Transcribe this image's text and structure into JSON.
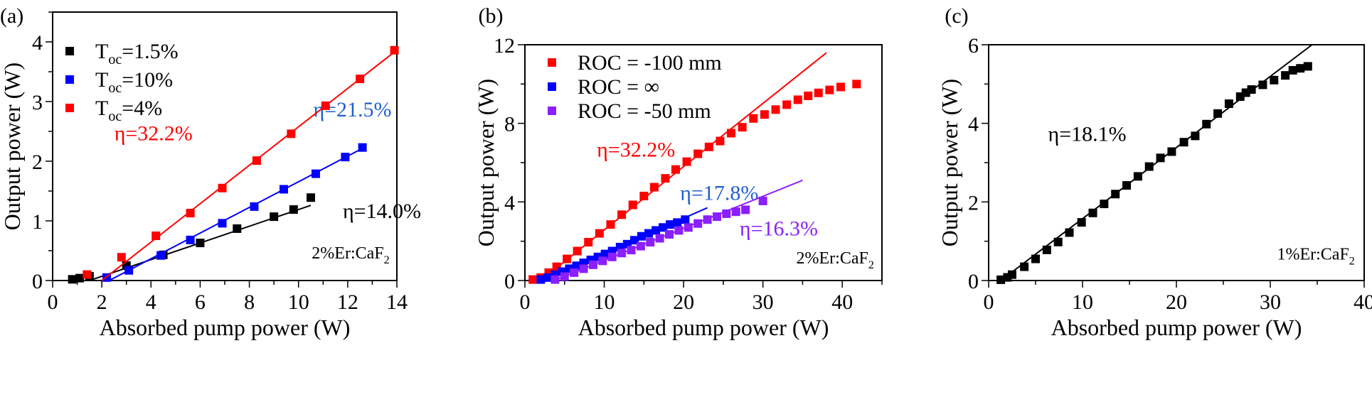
{
  "chart_data": [
    {
      "panel_label": "(a)",
      "type": "scatter",
      "xlabel": "Absorbed pump power (W)",
      "ylabel": "Output power (W)",
      "xlim": [
        0,
        14
      ],
      "ylim": [
        0,
        4.5
      ],
      "xticks": [
        0,
        2,
        4,
        6,
        8,
        10,
        12,
        14
      ],
      "yticks": [
        0,
        1,
        2,
        3,
        4
      ],
      "legend_placement": "top-left",
      "sample_label": "2%Er:CaF",
      "sample_label_sub": "2",
      "series": [
        {
          "name": "T",
          "name_sub": "oc",
          "name_suffix": "=1.5%",
          "color": "#000000",
          "x": [
            0.8,
            1.1,
            1.5,
            3.0,
            4.5,
            6.0,
            7.5,
            9.0,
            9.8,
            10.5
          ],
          "y": [
            0.02,
            0.04,
            0.07,
            0.25,
            0.43,
            0.63,
            0.87,
            1.07,
            1.19,
            1.39
          ],
          "fit": {
            "slope": 0.14,
            "x": [
              1.5,
              10.5
            ]
          },
          "annotation": "η=14.0%"
        },
        {
          "name": "T",
          "name_sub": "oc",
          "name_suffix": "=10%",
          "color": "#0000ff",
          "x": [
            2.2,
            3.1,
            4.4,
            5.6,
            6.9,
            8.2,
            9.4,
            10.7,
            11.9,
            12.6
          ],
          "y": [
            0.05,
            0.17,
            0.42,
            0.68,
            0.96,
            1.24,
            1.53,
            1.79,
            2.07,
            2.23
          ],
          "fit": {
            "slope": 0.215,
            "x": [
              2.3,
              12.6
            ]
          },
          "annotation": "η=21.5%",
          "annotation_color": "#1f5fd0"
        },
        {
          "name": "T",
          "name_sub": "oc",
          "name_suffix": "=4%",
          "color": "#ff0000",
          "x": [
            1.4,
            2.8,
            4.2,
            5.6,
            6.9,
            8.3,
            9.7,
            11.1,
            12.5,
            13.9
          ],
          "y": [
            0.1,
            0.39,
            0.75,
            1.13,
            1.55,
            2.01,
            2.46,
            2.93,
            3.38,
            3.86
          ],
          "fit": {
            "slope": 0.322,
            "x": [
              2.0,
              14.0
            ]
          },
          "annotation": "η=32.2%"
        }
      ]
    },
    {
      "panel_label": "(b)",
      "type": "scatter",
      "xlabel": "Absorbed pump power (W)",
      "ylabel": "Output power (W)",
      "xlim": [
        0,
        45
      ],
      "ylim": [
        0,
        12
      ],
      "xticks": [
        0,
        10,
        20,
        30,
        40
      ],
      "yticks": [
        0,
        4,
        8,
        12
      ],
      "legend_placement": "top-left",
      "sample_label": "2%Er:CaF",
      "sample_label_sub": "2",
      "series": [
        {
          "name": "ROC = -100 mm",
          "color": "#ff0000",
          "x": [
            1.0,
            2.0,
            3.0,
            4.0,
            5.3,
            6.6,
            8.0,
            9.4,
            10.8,
            12.2,
            13.6,
            15.0,
            16.3,
            17.7,
            19.0,
            20.4,
            21.8,
            23.2,
            24.6,
            26.0,
            27.4,
            28.8,
            30.2,
            31.6,
            33.0,
            34.4,
            35.7,
            37.0,
            38.4,
            39.8,
            41.8
          ],
          "y": [
            0.05,
            0.15,
            0.4,
            0.7,
            1.1,
            1.5,
            1.95,
            2.4,
            2.85,
            3.35,
            3.85,
            4.3,
            4.75,
            5.2,
            5.65,
            6.05,
            6.45,
            6.8,
            7.1,
            7.5,
            7.8,
            8.25,
            8.45,
            8.7,
            8.95,
            9.2,
            9.4,
            9.55,
            9.7,
            9.85,
            10.0
          ],
          "fit": {
            "slope": 0.322,
            "x": [
              2.0,
              38.0
            ]
          },
          "annotation": "η=32.2%"
        },
        {
          "name": "ROC = ∞",
          "color": "#0000ff",
          "x": [
            2.0,
            2.9,
            3.8,
            4.7,
            5.6,
            6.5,
            7.4,
            8.3,
            9.2,
            10.1,
            11.0,
            12.0,
            12.9,
            13.8,
            14.7,
            15.6,
            16.5,
            17.4,
            18.3,
            19.2,
            20.2
          ],
          "y": [
            0.05,
            0.15,
            0.3,
            0.45,
            0.6,
            0.75,
            0.9,
            1.05,
            1.2,
            1.35,
            1.5,
            1.7,
            1.85,
            2.05,
            2.25,
            2.4,
            2.55,
            2.7,
            2.85,
            2.95,
            3.1
          ],
          "fit": {
            "slope": 0.178,
            "x": [
              2.2,
              23.0
            ]
          },
          "annotation": "η=17.8%",
          "annotation_color": "#1f5fd0"
        },
        {
          "name": "ROC = -50 mm",
          "color": "#8b1fff",
          "x": [
            3.8,
            5.0,
            6.2,
            7.4,
            8.6,
            9.8,
            11.0,
            12.2,
            13.4,
            14.6,
            15.8,
            17.0,
            18.2,
            19.4,
            20.6,
            21.8,
            23.0,
            24.2,
            25.4,
            26.6,
            27.8,
            30.0
          ],
          "y": [
            0.05,
            0.2,
            0.4,
            0.6,
            0.8,
            1.0,
            1.2,
            1.4,
            1.55,
            1.75,
            1.95,
            2.15,
            2.35,
            2.55,
            2.7,
            2.9,
            3.1,
            3.25,
            3.4,
            3.5,
            3.6,
            4.05
          ],
          "fit": {
            "slope": 0.163,
            "x": [
              3.7,
              35.0
            ]
          },
          "annotation": "η=16.3%"
        }
      ]
    },
    {
      "panel_label": "(c)",
      "type": "scatter",
      "xlabel": "Absorbed pump power (W)",
      "ylabel": "Output power (W)",
      "xlim": [
        0,
        40
      ],
      "ylim": [
        0,
        6
      ],
      "xticks": [
        0,
        10,
        20,
        30,
        40
      ],
      "yticks": [
        0,
        2,
        4,
        6
      ],
      "sample_label": "1%Er:CaF",
      "sample_label_sub": "2",
      "series": [
        {
          "color": "#000000",
          "x": [
            1.3,
            2.0,
            2.5,
            3.8,
            5.0,
            6.2,
            7.4,
            8.6,
            9.9,
            11.1,
            12.3,
            13.5,
            14.7,
            15.9,
            17.1,
            18.3,
            19.5,
            20.8,
            22.0,
            23.2,
            24.4,
            25.6,
            26.8,
            27.4,
            28.0,
            29.2,
            30.4,
            31.6,
            32.4,
            33.2,
            34.0
          ],
          "y": [
            0.02,
            0.08,
            0.15,
            0.35,
            0.55,
            0.78,
            0.98,
            1.22,
            1.48,
            1.72,
            1.95,
            2.2,
            2.42,
            2.65,
            2.9,
            3.12,
            3.28,
            3.52,
            3.68,
            3.98,
            4.25,
            4.5,
            4.68,
            4.78,
            4.86,
            4.98,
            5.1,
            5.22,
            5.35,
            5.4,
            5.45
          ],
          "fit": {
            "slope": 0.181,
            "x": [
              1.3,
              34.5
            ]
          },
          "annotation": "η=18.1%"
        }
      ]
    }
  ]
}
